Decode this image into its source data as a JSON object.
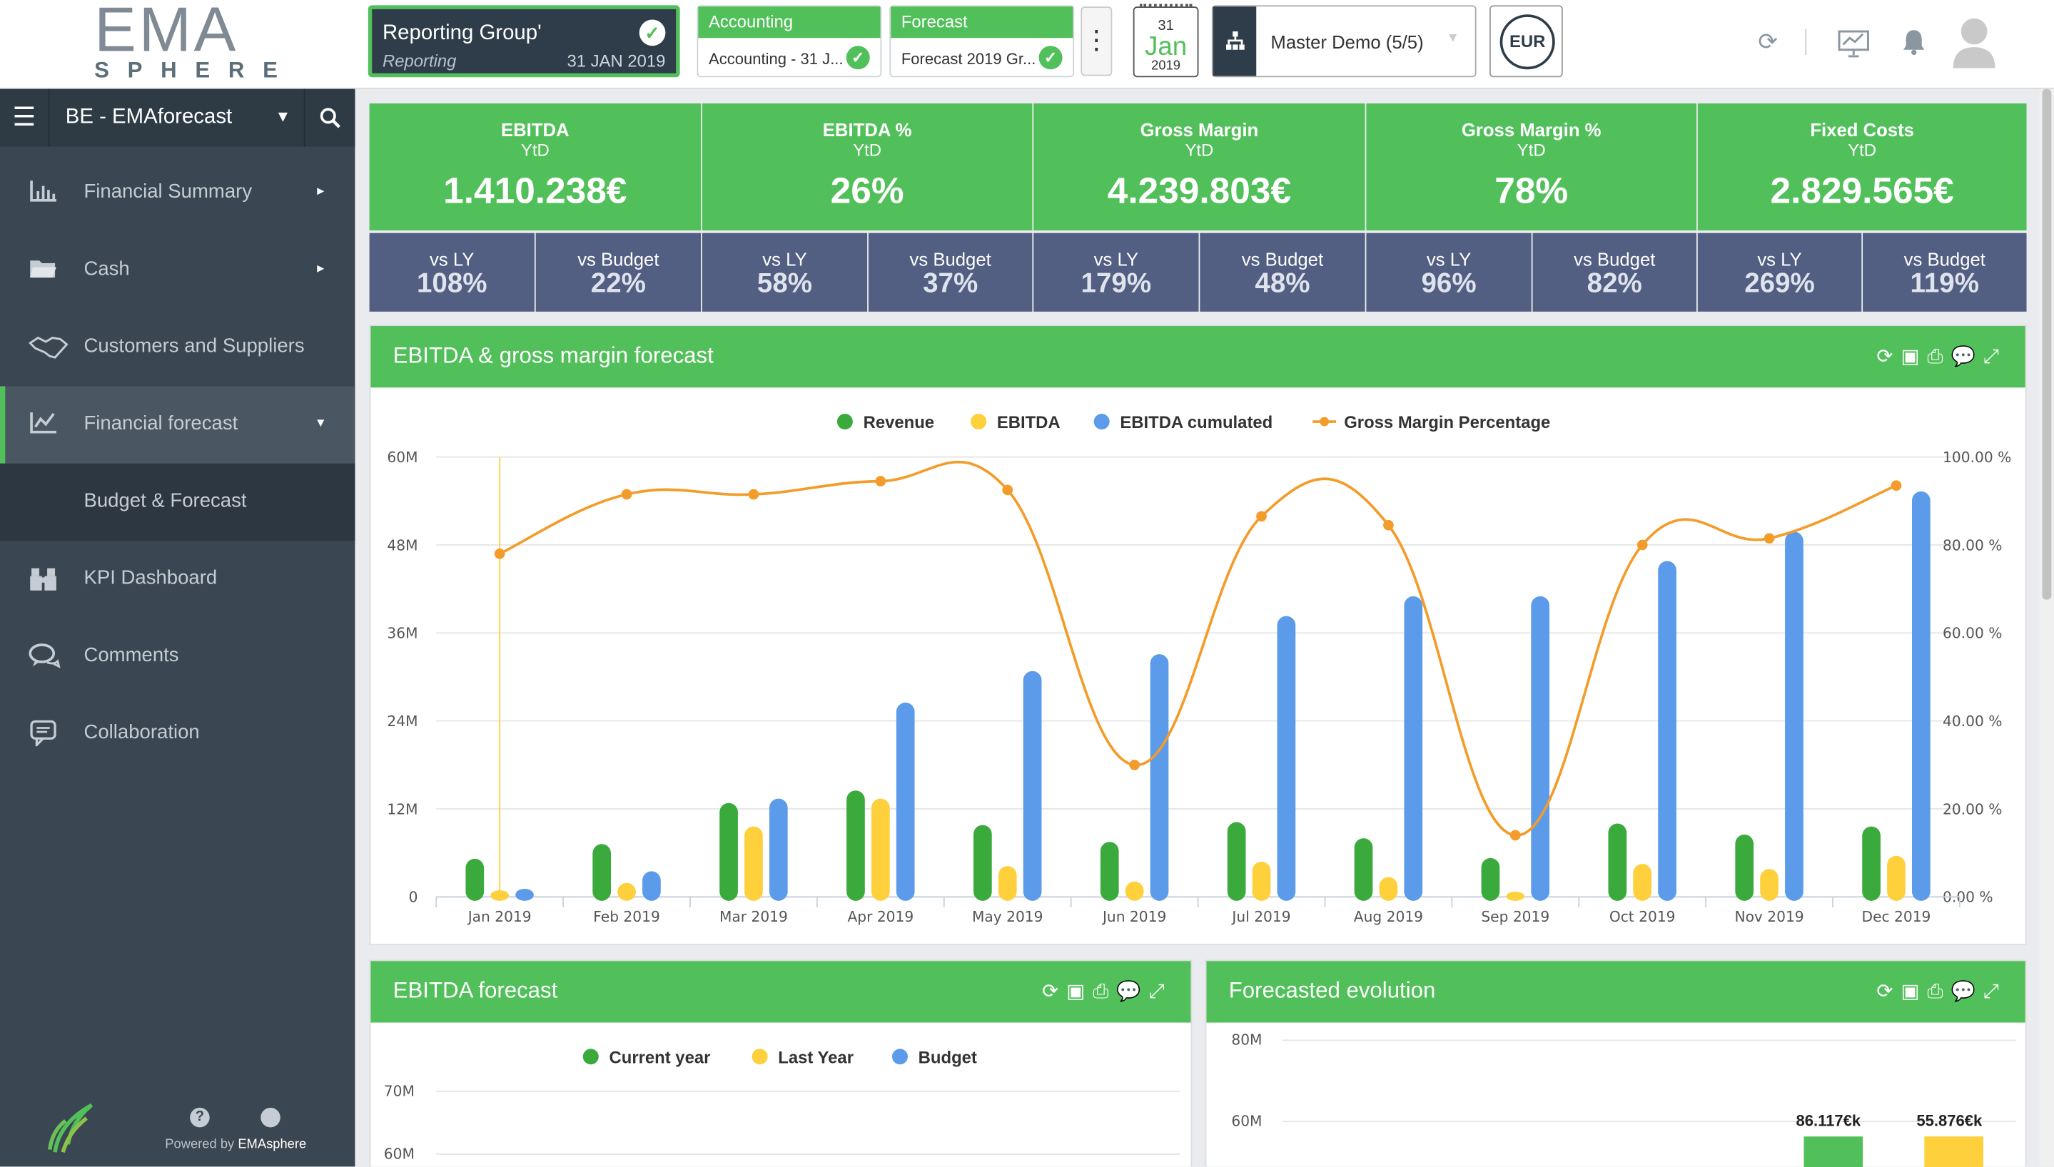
{
  "header": {
    "logo_top": "EMA",
    "logo_bottom": "SPHERE",
    "reporting": {
      "title": "Reporting Group'",
      "subtitle": "Reporting",
      "date": "31 JAN 2019"
    },
    "accounting": {
      "title": "Accounting",
      "value": "Accounting - 31 J..."
    },
    "forecast": {
      "title": "Forecast",
      "value": "Forecast 2019 Gr..."
    },
    "calendar": {
      "day": "31",
      "month": "Jan",
      "year": "2019"
    },
    "company": "Master Demo (5/5)",
    "currency": "EUR"
  },
  "sidebar": {
    "entity": "BE - EMAforecast",
    "items": [
      {
        "label": "Financial Summary",
        "icon": "bar-chart-icon",
        "arrow": "▸"
      },
      {
        "label": "Cash",
        "icon": "folder-icon",
        "arrow": "▸"
      },
      {
        "label": "Customers and Suppliers",
        "icon": "handshake-icon",
        "arrow": ""
      },
      {
        "label": "Financial forecast",
        "icon": "line-chart-icon",
        "arrow": "▾"
      },
      {
        "label": "Budget & Forecast",
        "icon": "",
        "arrow": ""
      },
      {
        "label": "KPI Dashboard",
        "icon": "binoculars-icon",
        "arrow": ""
      },
      {
        "label": "Comments",
        "icon": "comments-icon",
        "arrow": ""
      },
      {
        "label": "Collaboration",
        "icon": "chat-icon",
        "arrow": ""
      }
    ],
    "powered_by": "Powered by",
    "powered_brand": "EMAsphere"
  },
  "kpis": [
    {
      "title": "EBITDA",
      "period": "YtD",
      "value": "1.410.238€",
      "vs_ly": "108%",
      "vs_budget": "22%"
    },
    {
      "title": "EBITDA %",
      "period": "YtD",
      "value": "26%",
      "vs_ly": "58%",
      "vs_budget": "37%"
    },
    {
      "title": "Gross Margin",
      "period": "YtD",
      "value": "4.239.803€",
      "vs_ly": "179%",
      "vs_budget": "48%"
    },
    {
      "title": "Gross Margin %",
      "period": "YtD",
      "value": "78%",
      "vs_ly": "96%",
      "vs_budget": "82%"
    },
    {
      "title": "Fixed Costs",
      "period": "YtD",
      "value": "2.829.565€",
      "vs_ly": "269%",
      "vs_budget": "119%"
    }
  ],
  "kpi_labels": {
    "vs_ly": "vs LY",
    "vs_budget": "vs Budget"
  },
  "colors": {
    "green": "#52c05a",
    "dark": "#3a4651",
    "revenue": "#3aaa3c",
    "ebitda": "#fdd03c",
    "cumulated": "#5b9bea",
    "gm": "#f39c2a",
    "slate": "#525e82"
  },
  "panels": {
    "main_title": "EBITDA & gross margin forecast",
    "ebitda_title": "EBITDA forecast",
    "evolution_title": "Forecasted evolution"
  },
  "chart_data": [
    {
      "type": "bar",
      "title": "EBITDA & gross margin forecast",
      "categories": [
        "Jan 2019",
        "Feb 2019",
        "Mar 2019",
        "Apr 2019",
        "May 2019",
        "Jun 2019",
        "Jul 2019",
        "Aug 2019",
        "Sep 2019",
        "Oct 2019",
        "Nov 2019",
        "Dec 2019"
      ],
      "y_ticks": [
        "0",
        "12M",
        "24M",
        "36M",
        "48M",
        "60M"
      ],
      "y2_ticks": [
        "0.00 %",
        "20.00 %",
        "40.00 %",
        "60.00 %",
        "80.00 %",
        "100.00 %"
      ],
      "ylim": [
        0,
        60000000
      ],
      "y2lim": [
        0,
        100
      ],
      "series": [
        {
          "name": "Revenue",
          "kind": "bar",
          "color": "#3aaa3c",
          "values": [
            5200000,
            7200000,
            12800000,
            14500000,
            9800000,
            7500000,
            10200000,
            8000000,
            5300000,
            10000000,
            8500000,
            9600000
          ]
        },
        {
          "name": "EBITDA",
          "kind": "bar",
          "color": "#fdd03c",
          "values": [
            900000,
            1900000,
            9600000,
            13400000,
            4200000,
            2100000,
            4800000,
            2700000,
            0,
            4500000,
            3800000,
            5600000
          ]
        },
        {
          "name": "EBITDA cumulated",
          "kind": "bar",
          "color": "#5b9bea",
          "values": [
            1100000,
            3500000,
            13400000,
            26500000,
            30800000,
            33100000,
            38300000,
            41000000,
            41000000,
            45800000,
            49800000,
            55300000
          ]
        },
        {
          "name": "Gross Margin Percentage",
          "kind": "line",
          "color": "#f39c2a",
          "values": [
            78,
            91.5,
            91.5,
            94.5,
            92.5,
            30,
            86.5,
            84.5,
            14,
            80,
            81.5,
            93.5
          ]
        }
      ],
      "legend": "top-center"
    },
    {
      "type": "bar",
      "title": "EBITDA forecast",
      "legend": [
        "Current year",
        "Last Year",
        "Budget"
      ],
      "y_ticks": [
        "70M",
        "60M"
      ]
    },
    {
      "type": "bar",
      "title": "Forecasted evolution",
      "y_ticks": [
        "80M",
        "60M"
      ],
      "data_labels": [
        "86.117€k",
        "55.876€k"
      ],
      "values": [
        86117,
        55876
      ]
    }
  ]
}
